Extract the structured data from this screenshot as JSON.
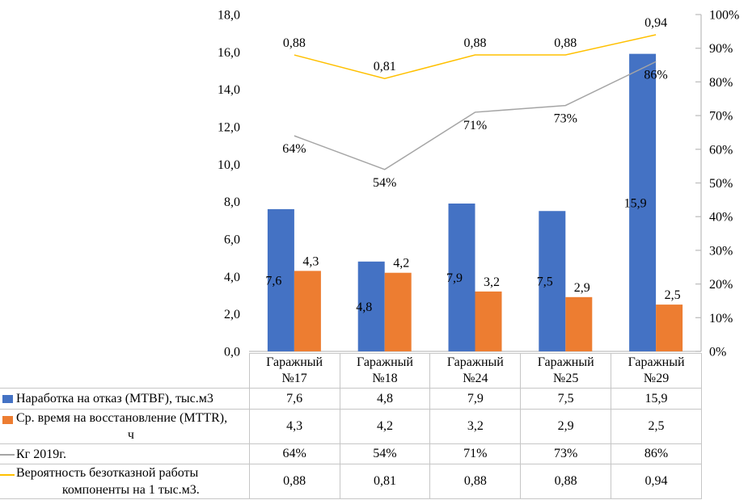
{
  "chart_data": {
    "type": "combo-bar-line",
    "title": "",
    "categories": [
      "Гаражный №17",
      "Гаражный №18",
      "Гаражный №24",
      "Гаражный №25",
      "Гаражный №29"
    ],
    "category_lines": [
      [
        "Гаражный",
        "№17"
      ],
      [
        "Гаражный",
        "№18"
      ],
      [
        "Гаражный",
        "№24"
      ],
      [
        "Гаражный",
        "№25"
      ],
      [
        "Гаражный",
        "№29"
      ]
    ],
    "series": [
      {
        "key": "mtbf",
        "name": "Наработка на отказ (MTBF), тыс.м3",
        "legend_lines": [
          "Наработка на отказ (MTBF), тыс.м3"
        ],
        "type": "bar",
        "color": "#4472C4",
        "axis": "left",
        "values": [
          7.6,
          4.8,
          7.9,
          7.5,
          15.9
        ],
        "labels": [
          "7,6",
          "4,8",
          "7,9",
          "7,5",
          "15,9"
        ]
      },
      {
        "key": "mttr",
        "name": "Ср. время на восстановление (MTTR), ч",
        "legend_lines": [
          "Ср. время на восстановление (MTTR),",
          "ч"
        ],
        "type": "bar",
        "color": "#ED7D31",
        "axis": "left",
        "values": [
          4.3,
          4.2,
          3.2,
          2.9,
          2.5
        ],
        "labels": [
          "4,3",
          "4,2",
          "3,2",
          "2,9",
          "2,5"
        ]
      },
      {
        "key": "kg-2019",
        "name": "Кг 2019г.",
        "legend_lines": [
          "Кг 2019г."
        ],
        "type": "line",
        "color": "#A5A5A5",
        "axis": "right",
        "values": [
          64,
          54,
          71,
          73,
          86
        ],
        "labels": [
          "64%",
          "54%",
          "71%",
          "73%",
          "86%"
        ]
      },
      {
        "key": "reliability",
        "name": "Вероятность безотказной работы компоненты на 1 тыс.м3.",
        "legend_lines": [
          "Вероятность безотказной работы",
          "компоненты на 1 тыс.м3."
        ],
        "type": "line",
        "color": "#FFC000",
        "axis": "right",
        "values": [
          88,
          81,
          88,
          88,
          94
        ],
        "labels": [
          "0,88",
          "0,81",
          "0,88",
          "0,88",
          "0,94"
        ]
      }
    ],
    "left_axis": {
      "min": 0,
      "max": 18,
      "step": 2,
      "labels": [
        "0,0",
        "2,0",
        "4,0",
        "6,0",
        "8,0",
        "10,0",
        "12,0",
        "14,0",
        "16,0",
        "18,0"
      ]
    },
    "right_axis": {
      "min": 0,
      "max": 100,
      "step": 10,
      "labels": [
        "0%",
        "10%",
        "20%",
        "30%",
        "40%",
        "50%",
        "60%",
        "70%",
        "80%",
        "90%",
        "100%"
      ]
    },
    "grid": false,
    "legend_position": "data-table-left",
    "colors": {
      "axis_line": "#BFBFBF",
      "table_border": "#C6C6C6",
      "text": "#000000",
      "background": "#FFFFFF"
    }
  }
}
